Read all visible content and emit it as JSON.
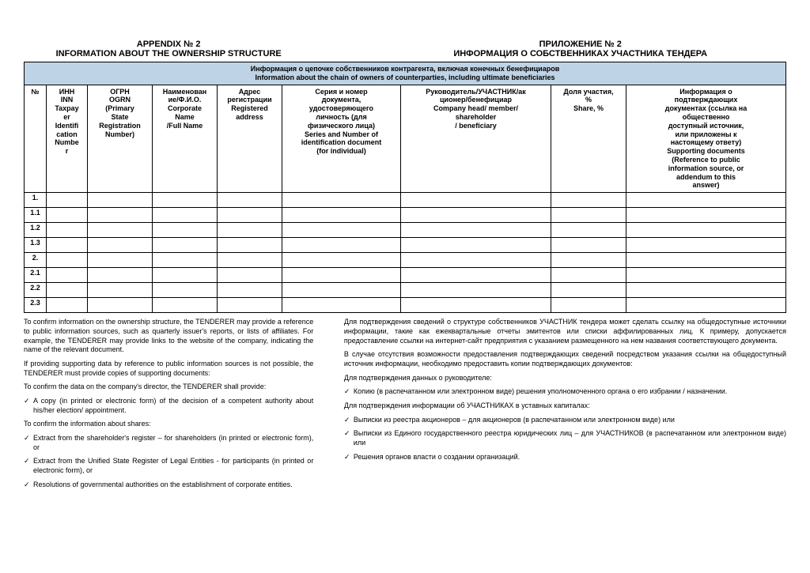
{
  "header": {
    "left_line1": "APPENDIX № 2",
    "left_line2": "INFORMATION ABOUT THE OWNERSHIP STRUCTURE",
    "right_line1": "ПРИЛОЖЕНИЕ № 2",
    "right_line2": "ИНФОРМАЦИЯ О СОБСТВЕННИКАХ УЧАСТНИКА ТЕНДЕРА"
  },
  "banner_ru": "Информация о цепочке собственников контрагента, включая конечных бенефициаров",
  "banner_en": "Information about the chain of owners of counterparties, including ultimate beneficiaries",
  "cols": {
    "c0": "№",
    "c1": "ИНН\nINN\nTaxpay\ner\nIdentifi\ncation\nNumbe\nr",
    "c2": "ОГРН\nOGRN\n(Primary\nState\nRegistration\nNumber)",
    "c3": "Наименован\nие/Ф.И.О.\nCorporate\nName\n/Full Name",
    "c4": "Адрес\nрегистрации\nRegistered\naddress",
    "c5": "Серия и номер\nдокумента,\nудостоверяющего\nличность (для\nфизического лица)\nSeries and Number of\nidentification document\n(for individual)",
    "c6": "Руководитель/УЧАСТНИК/ак\nционер/бенефициар\nCompany head/ member/\nshareholder\n/ beneficiary",
    "c7": "Доля участия,\n%\nShare, %",
    "c8": "Информация о\nподтверждающих\nдокументах (ссылка на\nобщественно\nдоступный источник,\nили приложены к\nнастоящему ответу)\nSupporting documents\n(Reference to public\ninformation source, or\naddendum to this\nanswer)"
  },
  "rows": [
    "1.",
    "1.1",
    "1.2",
    "1.3",
    "2.",
    "2.1",
    "2.2",
    "2.3"
  ],
  "widths": {
    "c0": "28px",
    "c1": "52px",
    "c2": "82px",
    "c3": "82px",
    "c4": "82px",
    "c5": "150px",
    "c6": "190px",
    "c7": "95px",
    "c8": "auto"
  },
  "colors": {
    "banner_bg": "#bfd3e6",
    "border": "#000000"
  },
  "notes_left": {
    "p1": "To confirm information on the ownership structure, the TENDERER may provide a reference to public information sources, such as quarterly issuer's reports, or lists of affiliates. For example, the TENDERER may provide links to the website of the company, indicating the name of the relevant document.",
    "p2": "If providing supporting data by reference to public information sources is not possible, the TENDERER must provide copies of supporting documents:",
    "p3": "To confirm the data on the company's director, the TENDERER shall provide:",
    "b1": "A copy (in printed or electronic form) of the decision of a competent authority about his/her election/ appointment.",
    "p4": "To confirm the information about shares:",
    "b2": "Extract from the shareholder's register – for shareholders (in printed or electronic form), or",
    "b3": "Extract from the Unified State Register of Legal Entities - for participants (in printed or electronic form), or",
    "b4": "Resolutions of governmental authorities on the establishment of corporate entities."
  },
  "notes_right": {
    "p1": "Для подтверждения сведений о структуре собственников УЧАСТНИК тендера может сделать ссылку на общедоступные источники информации, такие как ежеквартальные отчеты эмитентов или списки аффилированных лиц.  К примеру, допускается предоставление ссылки на интернет-сайт предприятия с указанием размещенного на нем названия соответствующего документа.",
    "p2": "В случае отсутствия возможности предоставления подтверждающих сведений посредством указания ссылки на общедоступный источник информации, необходимо предоставить копии подтверждающих документов:",
    "p3": "Для подтверждения данных о руководителе:",
    "b1": "Копию (в распечатанном или электронном виде) решения уполномоченного органа о его избрании / назначении.",
    "p4": "Для подтверждения информации об УЧАСТНИКАХ в уставных капиталах:",
    "b2": "Выписки из реестра акционеров – для акционеров (в распечатанном или электронном виде) или",
    "b3": "Выписки из Единого государственного реестра юридических лиц – для УЧАСТНИКОВ (в распечатанном или электронном виде) или",
    "b4": "Решения органов власти о создании организаций."
  },
  "tick": "✓"
}
